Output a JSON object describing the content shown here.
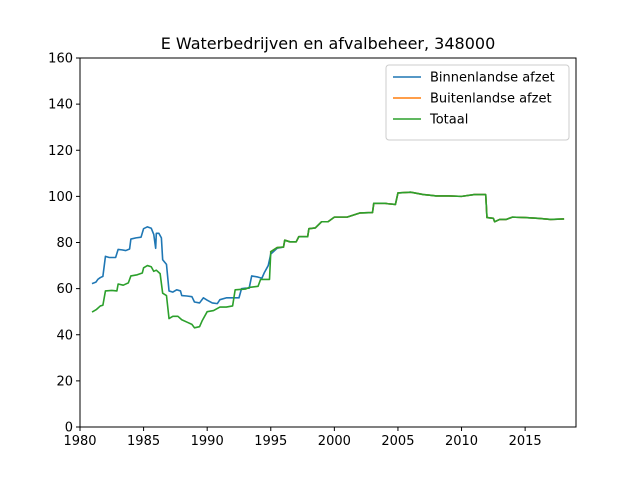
{
  "chart_data": {
    "type": "line",
    "title": "E Waterbedrijven en afvalbeheer, 348000",
    "xlabel": "",
    "ylabel": "",
    "xlim": [
      1980,
      2019
    ],
    "ylim": [
      0,
      160
    ],
    "xticks": [
      1980,
      1985,
      1990,
      1995,
      2000,
      2005,
      2010,
      2015
    ],
    "yticks": [
      0,
      20,
      40,
      60,
      80,
      100,
      120,
      140,
      160
    ],
    "grid": false,
    "legend_position": "top-right",
    "series": [
      {
        "name": "Binnenlandse afzet",
        "color": "#1f77b4",
        "points": [
          [
            1981.0,
            62.3
          ],
          [
            1981.25,
            62.8
          ],
          [
            1981.4,
            64.0
          ],
          [
            1981.6,
            64.8
          ],
          [
            1981.8,
            65.3
          ],
          [
            1982.0,
            74.0
          ],
          [
            1982.3,
            73.5
          ],
          [
            1982.8,
            73.5
          ],
          [
            1983.0,
            77.0
          ],
          [
            1983.3,
            76.8
          ],
          [
            1983.6,
            76.5
          ],
          [
            1983.9,
            77.2
          ],
          [
            1984.0,
            81.5
          ],
          [
            1984.4,
            82.0
          ],
          [
            1984.8,
            82.3
          ],
          [
            1985.0,
            86.0
          ],
          [
            1985.3,
            86.8
          ],
          [
            1985.6,
            86.2
          ],
          [
            1985.8,
            83.5
          ],
          [
            1985.95,
            77.5
          ],
          [
            1986.0,
            84.0
          ],
          [
            1986.2,
            84.0
          ],
          [
            1986.4,
            82.0
          ],
          [
            1986.5,
            72.5
          ],
          [
            1986.8,
            70.5
          ],
          [
            1987.0,
            59.0
          ],
          [
            1987.3,
            58.5
          ],
          [
            1987.6,
            59.5
          ],
          [
            1987.9,
            59.0
          ],
          [
            1988.0,
            57.0
          ],
          [
            1988.4,
            56.8
          ],
          [
            1988.8,
            56.5
          ],
          [
            1989.0,
            54.2
          ],
          [
            1989.4,
            53.8
          ],
          [
            1989.7,
            56.0
          ],
          [
            1990.0,
            55.0
          ],
          [
            1990.4,
            53.8
          ],
          [
            1990.8,
            53.5
          ],
          [
            1991.0,
            55.2
          ],
          [
            1991.5,
            56.0
          ],
          [
            1992.0,
            56.0
          ],
          [
            1992.5,
            56.0
          ],
          [
            1992.7,
            60.0
          ],
          [
            1993.0,
            60.2
          ],
          [
            1993.3,
            60.2
          ],
          [
            1993.5,
            65.5
          ],
          [
            1994.0,
            65.0
          ],
          [
            1994.3,
            64.5
          ],
          [
            1994.5,
            67.0
          ],
          [
            1994.8,
            70.0
          ],
          [
            1995.0,
            75.0
          ],
          [
            1995.5,
            77.5
          ],
          [
            1996.0,
            78.0
          ],
          [
            1996.1,
            81.0
          ],
          [
            1996.5,
            80.3
          ],
          [
            1997.0,
            80.3
          ],
          [
            1997.2,
            82.5
          ],
          [
            1997.9,
            82.5
          ],
          [
            1998.0,
            86.0
          ],
          [
            1998.5,
            86.3
          ],
          [
            1999.0,
            89.0
          ],
          [
            1999.5,
            89.0
          ],
          [
            2000.0,
            91.0
          ],
          [
            2001.0,
            91.0
          ],
          [
            2002.0,
            92.8
          ],
          [
            2003.0,
            93.0
          ],
          [
            2003.1,
            97.0
          ],
          [
            2004.0,
            97.0
          ],
          [
            2004.2,
            96.8
          ],
          [
            2004.8,
            96.5
          ],
          [
            2005.0,
            101.5
          ],
          [
            2006.0,
            101.8
          ],
          [
            2007.0,
            100.8
          ],
          [
            2007.5,
            100.5
          ],
          [
            2008.0,
            100.2
          ],
          [
            2009.0,
            100.2
          ],
          [
            2010.0,
            100.0
          ],
          [
            2011.0,
            100.8
          ],
          [
            2011.9,
            100.8
          ],
          [
            2012.0,
            90.8
          ],
          [
            2012.5,
            90.5
          ],
          [
            2012.6,
            89.0
          ],
          [
            2013.0,
            90.0
          ],
          [
            2013.5,
            90.0
          ],
          [
            2014.0,
            91.0
          ],
          [
            2015.0,
            90.8
          ],
          [
            2016.0,
            90.5
          ],
          [
            2017.0,
            90.0
          ],
          [
            2018.0,
            90.2
          ]
        ]
      },
      {
        "name": "Buitenlandse afzet",
        "color": "#ff7f0e",
        "points": [
          [
            1995.0,
            76.0
          ],
          [
            1995.5,
            77.8
          ],
          [
            1996.0,
            78.0
          ],
          [
            1996.1,
            81.0
          ],
          [
            1996.5,
            80.3
          ],
          [
            1997.0,
            80.3
          ],
          [
            1997.2,
            82.5
          ],
          [
            1997.9,
            82.5
          ],
          [
            1998.0,
            86.0
          ],
          [
            1998.5,
            86.3
          ],
          [
            1999.0,
            89.0
          ],
          [
            1999.5,
            89.0
          ],
          [
            2000.0,
            91.0
          ],
          [
            2001.0,
            91.0
          ],
          [
            2002.0,
            92.8
          ],
          [
            2003.0,
            93.0
          ],
          [
            2003.1,
            97.0
          ],
          [
            2004.0,
            97.0
          ],
          [
            2004.2,
            96.8
          ],
          [
            2004.8,
            96.5
          ],
          [
            2005.0,
            101.5
          ],
          [
            2006.0,
            101.8
          ],
          [
            2007.0,
            100.8
          ],
          [
            2007.5,
            100.5
          ],
          [
            2008.0,
            100.2
          ],
          [
            2009.0,
            100.2
          ],
          [
            2010.0,
            100.0
          ],
          [
            2011.0,
            100.8
          ],
          [
            2011.9,
            100.8
          ],
          [
            2012.0,
            90.8
          ],
          [
            2012.5,
            90.5
          ],
          [
            2012.6,
            89.0
          ],
          [
            2013.0,
            90.0
          ],
          [
            2013.5,
            90.0
          ],
          [
            2014.0,
            91.0
          ],
          [
            2015.0,
            90.8
          ],
          [
            2016.0,
            90.5
          ],
          [
            2017.0,
            90.0
          ],
          [
            2018.0,
            90.2
          ]
        ]
      },
      {
        "name": "Totaal",
        "color": "#2ca02c",
        "points": [
          [
            1981.0,
            50.0
          ],
          [
            1981.3,
            51.0
          ],
          [
            1981.6,
            52.5
          ],
          [
            1981.8,
            52.8
          ],
          [
            1982.0,
            59.0
          ],
          [
            1982.5,
            59.2
          ],
          [
            1982.9,
            59.0
          ],
          [
            1983.0,
            62.0
          ],
          [
            1983.4,
            61.5
          ],
          [
            1983.8,
            62.5
          ],
          [
            1984.0,
            65.5
          ],
          [
            1984.5,
            66.0
          ],
          [
            1984.9,
            66.8
          ],
          [
            1985.0,
            69.0
          ],
          [
            1985.3,
            70.0
          ],
          [
            1985.6,
            69.5
          ],
          [
            1985.8,
            67.5
          ],
          [
            1986.0,
            68.0
          ],
          [
            1986.3,
            66.5
          ],
          [
            1986.5,
            58.0
          ],
          [
            1986.8,
            57.0
          ],
          [
            1987.0,
            47.0
          ],
          [
            1987.3,
            48.0
          ],
          [
            1987.7,
            48.0
          ],
          [
            1988.0,
            46.5
          ],
          [
            1988.4,
            45.5
          ],
          [
            1988.8,
            44.5
          ],
          [
            1989.0,
            43.0
          ],
          [
            1989.4,
            43.5
          ],
          [
            1989.6,
            46.0
          ],
          [
            1990.0,
            50.0
          ],
          [
            1990.5,
            50.5
          ],
          [
            1991.0,
            52.0
          ],
          [
            1991.5,
            52.0
          ],
          [
            1992.0,
            52.5
          ],
          [
            1992.2,
            59.5
          ],
          [
            1993.0,
            59.8
          ],
          [
            1993.3,
            60.5
          ],
          [
            1994.0,
            61.0
          ],
          [
            1994.2,
            64.0
          ],
          [
            1994.9,
            64.0
          ],
          [
            1995.0,
            76.0
          ],
          [
            1995.5,
            77.8
          ],
          [
            1996.0,
            78.0
          ],
          [
            1996.1,
            81.0
          ],
          [
            1996.5,
            80.3
          ],
          [
            1997.0,
            80.3
          ],
          [
            1997.2,
            82.5
          ],
          [
            1997.9,
            82.5
          ],
          [
            1998.0,
            86.0
          ],
          [
            1998.5,
            86.3
          ],
          [
            1999.0,
            89.0
          ],
          [
            1999.5,
            89.0
          ],
          [
            2000.0,
            91.0
          ],
          [
            2001.0,
            91.0
          ],
          [
            2002.0,
            92.8
          ],
          [
            2003.0,
            93.0
          ],
          [
            2003.1,
            97.0
          ],
          [
            2004.0,
            97.0
          ],
          [
            2004.2,
            96.8
          ],
          [
            2004.8,
            96.5
          ],
          [
            2005.0,
            101.5
          ],
          [
            2006.0,
            101.8
          ],
          [
            2007.0,
            100.8
          ],
          [
            2007.5,
            100.5
          ],
          [
            2008.0,
            100.2
          ],
          [
            2009.0,
            100.2
          ],
          [
            2010.0,
            100.0
          ],
          [
            2011.0,
            100.8
          ],
          [
            2011.9,
            100.8
          ],
          [
            2012.0,
            90.8
          ],
          [
            2012.5,
            90.5
          ],
          [
            2012.6,
            89.0
          ],
          [
            2013.0,
            90.0
          ],
          [
            2013.5,
            90.0
          ],
          [
            2014.0,
            91.0
          ],
          [
            2015.0,
            90.8
          ],
          [
            2016.0,
            90.5
          ],
          [
            2017.0,
            90.0
          ],
          [
            2018.0,
            90.2
          ]
        ]
      }
    ]
  }
}
